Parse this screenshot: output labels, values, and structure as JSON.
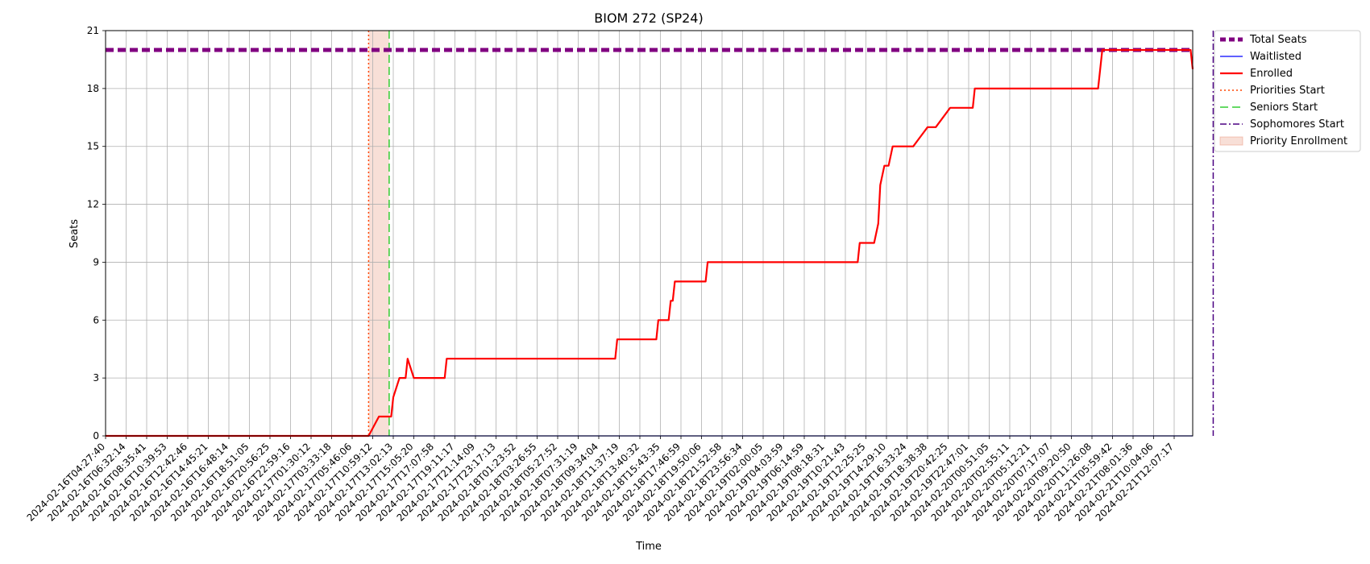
{
  "chart_data": {
    "type": "line",
    "title": "BIOM 272 (SP24)",
    "xlabel": "Time",
    "ylabel": "Seats",
    "ylim": [
      0,
      21
    ],
    "yticks": [
      0,
      3,
      6,
      9,
      12,
      15,
      18,
      21
    ],
    "xlim": [
      "2024-02-16T04:27:40",
      "2024-02-21T13:53:00"
    ],
    "grid": true,
    "legend_position": "outside-top-right",
    "xtick_labels": [
      "2024-02-16T04:27:40",
      "2024-02-16T06:32:14",
      "2024-02-16T08:35:41",
      "2024-02-16T10:39:53",
      "2024-02-16T12:42:46",
      "2024-02-16T14:45:21",
      "2024-02-16T16:48:14",
      "2024-02-16T18:51:05",
      "2024-02-16T20:56:25",
      "2024-02-16T22:59:16",
      "2024-02-17T01:30:12",
      "2024-02-17T03:33:18",
      "2024-02-17T05:46:06",
      "2024-02-17T10:59:12",
      "2024-02-17T13:02:13",
      "2024-02-17T15:05:20",
      "2024-02-17T17:07:58",
      "2024-02-17T19:11:17",
      "2024-02-17T21:14:09",
      "2024-02-17T23:17:13",
      "2024-02-18T01:23:52",
      "2024-02-18T03:26:55",
      "2024-02-18T05:27:52",
      "2024-02-18T07:31:19",
      "2024-02-18T09:34:04",
      "2024-02-18T11:37:19",
      "2024-02-18T13:40:32",
      "2024-02-18T15:43:35",
      "2024-02-18T17:46:59",
      "2024-02-18T19:50:06",
      "2024-02-18T21:52:58",
      "2024-02-18T23:56:34",
      "2024-02-19T02:00:05",
      "2024-02-19T04:03:59",
      "2024-02-19T06:14:59",
      "2024-02-19T08:18:31",
      "2024-02-19T10:21:43",
      "2024-02-19T12:25:25",
      "2024-02-19T14:29:10",
      "2024-02-19T16:33:24",
      "2024-02-19T18:38:38",
      "2024-02-19T20:42:25",
      "2024-02-19T22:47:01",
      "2024-02-20T00:51:05",
      "2024-02-20T02:55:11",
      "2024-02-20T05:12:21",
      "2024-02-20T07:17:07",
      "2024-02-20T09:20:50",
      "2024-02-20T11:26:08",
      "2024-02-21T05:59:42",
      "2024-02-21T08:01:36",
      "2024-02-21T10:04:06",
      "2024-02-21T12:07:17"
    ],
    "series": [
      {
        "name": "Total Seats",
        "color": "#800080",
        "style": "dashed",
        "x": [
          0,
          54
        ],
        "y": [
          20,
          20
        ]
      },
      {
        "name": "Waitlisted",
        "color": "#0000ff",
        "style": "solid",
        "x": [
          0,
          54
        ],
        "y": [
          0,
          0
        ]
      },
      {
        "name": "Enrolled",
        "color": "#ff0000",
        "style": "solid",
        "x": [
          0,
          12.5,
          12.8,
          13.3,
          13.4,
          13.9,
          14.0,
          14.3,
          14.5,
          14.6,
          14.7,
          15.0,
          16.5,
          16.6,
          24.8,
          24.9,
          26.8,
          26.9,
          27.4,
          27.5,
          27.6,
          27.7,
          28.5,
          29.2,
          29.3,
          30.6,
          30.7,
          36.6,
          36.7,
          37.4,
          37.6,
          37.7,
          37.9,
          38.1,
          38.3,
          38.5,
          39.0,
          39.3,
          40.0,
          40.4,
          41.1,
          41.6,
          42.2,
          42.3,
          48.3,
          48.4,
          48.5,
          48.6,
          52.8,
          52.9,
          54
        ],
        "y": [
          0,
          0,
          0,
          1,
          1,
          1,
          2,
          3,
          3,
          3,
          4,
          3,
          3,
          4,
          4,
          5,
          5,
          6,
          6,
          7,
          7,
          8,
          8,
          8,
          9,
          9,
          9,
          9,
          10,
          10,
          11,
          13,
          14,
          14,
          15,
          15,
          15,
          15,
          16,
          16,
          17,
          17,
          17,
          18,
          18,
          19,
          20,
          20,
          20,
          19,
          19
        ]
      }
    ],
    "markers": [
      {
        "name": "Priorities Start",
        "color": "#ff4500",
        "style": "dotted",
        "x": 12.8
      },
      {
        "name": "Seniors Start",
        "color": "#32cd32",
        "style": "dashed",
        "x": 13.8
      },
      {
        "name": "Sophomores Start",
        "color": "#4b0082",
        "style": "dashdot",
        "x": 53.9
      }
    ],
    "spans": [
      {
        "name": "Priority Enrollment",
        "color": "#e9967a",
        "x0": 12.8,
        "x1": 13.8
      }
    ],
    "legend": [
      "Total Seats",
      "Waitlisted",
      "Enrolled",
      "Priorities Start",
      "Seniors Start",
      "Sophomores Start",
      "Priority Enrollment"
    ]
  }
}
